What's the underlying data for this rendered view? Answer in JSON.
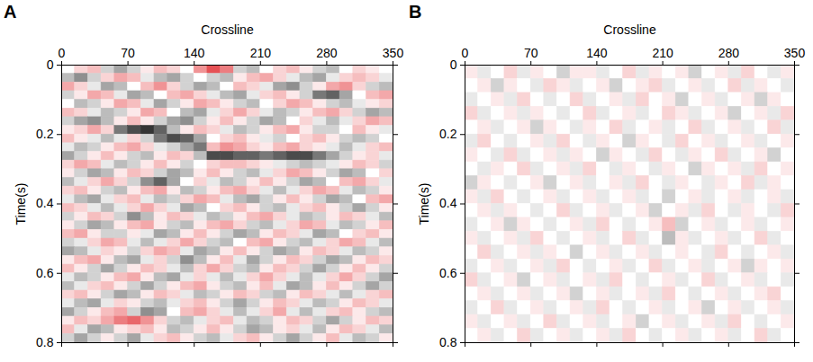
{
  "chart_data": [
    {
      "type": "heatmap",
      "title": "A",
      "xlabel": "Crossline",
      "ylabel": "Time(s)",
      "xlim": [
        0,
        350
      ],
      "xticks": [
        0,
        70,
        140,
        210,
        280,
        350
      ],
      "ylim": [
        0,
        0.8
      ],
      "yticks": [
        0,
        0.2,
        0.4,
        0.6,
        0.8
      ],
      "zlim": [
        -10,
        10
      ],
      "cells": [
        [
          0,
          2,
          3,
          -2,
          -4,
          -2,
          1,
          3,
          2,
          0,
          5,
          8,
          6,
          -2,
          -3,
          0,
          2,
          3,
          1,
          -2,
          -3,
          0,
          2,
          1,
          0
        ],
        [
          -3,
          -5,
          -2,
          2,
          4,
          3,
          -1,
          -3,
          -4,
          -2,
          0,
          -2,
          -3,
          1,
          3,
          4,
          2,
          -1,
          -3,
          -4,
          -1,
          2,
          3,
          2,
          -1
        ],
        [
          4,
          2,
          -1,
          -4,
          -3,
          0,
          3,
          5,
          2,
          -2,
          -4,
          -3,
          0,
          3,
          2,
          -1,
          -4,
          -5,
          -2,
          1,
          4,
          5,
          2,
          -2,
          -3
        ],
        [
          -2,
          1,
          4,
          3,
          -1,
          -4,
          -3,
          0,
          3,
          4,
          2,
          -1,
          -3,
          -4,
          -1,
          2,
          3,
          1,
          -2,
          -6,
          -7,
          -4,
          0,
          3,
          4
        ],
        [
          0,
          -3,
          -2,
          1,
          4,
          3,
          -1,
          -4,
          -2,
          1,
          4,
          3,
          1,
          -2,
          -3,
          0,
          2,
          4,
          3,
          1,
          -2,
          -3,
          -1,
          1,
          2
        ],
        [
          3,
          2,
          -1,
          -3,
          -2,
          1,
          4,
          3,
          0,
          -3,
          -4,
          -1,
          2,
          4,
          2,
          -1,
          -3,
          -2,
          1,
          3,
          4,
          2,
          -2,
          -4,
          -3
        ],
        [
          -2,
          -4,
          -5,
          -3,
          1,
          3,
          1,
          -2,
          -4,
          -5,
          -2,
          1,
          3,
          1,
          -2,
          -4,
          -3,
          0,
          2,
          -1,
          -3,
          -1,
          2,
          4,
          3
        ],
        [
          1,
          2,
          4,
          2,
          -6,
          -8,
          -9,
          -7,
          -3,
          1,
          3,
          2,
          -1,
          -3,
          -2,
          1,
          3,
          4,
          1,
          -2,
          -2,
          0,
          3,
          1,
          -1
        ],
        [
          3,
          1,
          -1,
          -3,
          -1,
          2,
          -2,
          -6,
          -8,
          -7,
          -4,
          0,
          2,
          3,
          1,
          -1,
          -2,
          0,
          2,
          3,
          1,
          -2,
          -3,
          -2,
          0
        ],
        [
          -1,
          -3,
          -2,
          1,
          3,
          4,
          2,
          -1,
          -2,
          -4,
          -6,
          3,
          5,
          4,
          2,
          1,
          3,
          4,
          2,
          1,
          -1,
          -3,
          -1,
          2,
          3
        ],
        [
          -4,
          -2,
          1,
          3,
          1,
          -2,
          -3,
          1,
          3,
          2,
          -3,
          -8,
          -8,
          -7,
          -7,
          -6,
          -7,
          -8,
          -8,
          -6,
          -4,
          -2,
          1,
          2,
          -1
        ],
        [
          2,
          4,
          3,
          -1,
          -3,
          -2,
          1,
          3,
          1,
          -2,
          0,
          2,
          3,
          3,
          2,
          1,
          -1,
          -2,
          -3,
          -2,
          -1,
          1,
          3,
          2,
          -2
        ],
        [
          1,
          -2,
          -4,
          -3,
          1,
          3,
          2,
          -2,
          -4,
          -3,
          1,
          3,
          1,
          -2,
          -3,
          -1,
          2,
          4,
          3,
          1,
          -2,
          -4,
          -3,
          0,
          2
        ],
        [
          -3,
          -1,
          2,
          4,
          2,
          -2,
          -5,
          -7,
          -4,
          0,
          2,
          -1,
          -3,
          -2,
          1,
          3,
          1,
          -2,
          -4,
          -3,
          0,
          3,
          4,
          2,
          -1
        ],
        [
          2,
          3,
          1,
          -2,
          -3,
          1,
          3,
          4,
          1,
          -3,
          -2,
          1,
          3,
          4,
          2,
          -1,
          -3,
          -1,
          2,
          4,
          3,
          -1,
          -3,
          -2,
          1
        ],
        [
          -1,
          -3,
          -4,
          -1,
          2,
          3,
          -1,
          -3,
          -2,
          2,
          4,
          3,
          -1,
          -3,
          -4,
          -2,
          1,
          3,
          1,
          -2,
          -4,
          -3,
          0,
          3,
          4
        ],
        [
          3,
          2,
          -1,
          -3,
          -1,
          2,
          4,
          2,
          -1,
          -4,
          -3,
          0,
          2,
          3,
          1,
          -2,
          -3,
          -1,
          2,
          3,
          1,
          -2,
          -4,
          -2,
          1
        ],
        [
          -2,
          1,
          3,
          2,
          -2,
          -5,
          -3,
          1,
          3,
          2,
          -1,
          -3,
          -2,
          1,
          3,
          4,
          2,
          -1,
          -3,
          -2,
          1,
          3,
          2,
          -1,
          -3
        ],
        [
          1,
          -2,
          -4,
          -3,
          1,
          3,
          4,
          1,
          -2,
          -3,
          1,
          3,
          4,
          2,
          -2,
          -3,
          -1,
          2,
          4,
          3,
          -1,
          -3,
          -2,
          1,
          3
        ],
        [
          3,
          4,
          1,
          -2,
          -2,
          1,
          -1,
          -4,
          -3,
          1,
          3,
          1,
          -2,
          -4,
          -3,
          1,
          3,
          2,
          -1,
          -4,
          -3,
          0,
          2,
          3,
          1
        ],
        [
          -2,
          -1,
          2,
          4,
          3,
          -1,
          -3,
          -1,
          2,
          4,
          2,
          -2,
          -3,
          0,
          3,
          4,
          1,
          -2,
          -3,
          -1,
          2,
          4,
          3,
          -1,
          -3
        ],
        [
          -4,
          -3,
          -1,
          2,
          1,
          -2,
          2,
          4,
          3,
          -1,
          -4,
          -3,
          1,
          3,
          1,
          -2,
          -4,
          -3,
          1,
          3,
          2,
          -1,
          -3,
          -2,
          1
        ],
        [
          1,
          3,
          4,
          1,
          -3,
          -4,
          -1,
          2,
          -2,
          -5,
          -3,
          1,
          3,
          -1,
          -4,
          -2,
          1,
          3,
          2,
          -2,
          -4,
          -3,
          1,
          3,
          2
        ],
        [
          3,
          1,
          -2,
          -4,
          -2,
          1,
          3,
          2,
          -1,
          -3,
          2,
          4,
          2,
          -2,
          -3,
          1,
          3,
          2,
          -2,
          -4,
          -2,
          1,
          3,
          1,
          -2
        ],
        [
          -1,
          -3,
          -2,
          1,
          3,
          4,
          1,
          -3,
          -4,
          -1,
          2,
          -1,
          -3,
          -1,
          2,
          4,
          2,
          -1,
          -3,
          -1,
          2,
          4,
          2,
          -2,
          -4
        ],
        [
          -3,
          -1,
          2,
          3,
          1,
          -2,
          -4,
          -2,
          1,
          3,
          4,
          1,
          -2,
          -3,
          1,
          3,
          -1,
          -4,
          -3,
          1,
          3,
          1,
          -2,
          -4,
          -2
        ],
        [
          2,
          3,
          1,
          -2,
          -4,
          -3,
          1,
          3,
          2,
          -1,
          -3,
          -2,
          1,
          3,
          2,
          -2,
          -3,
          1,
          3,
          2,
          -1,
          -3,
          -1,
          2,
          3
        ],
        [
          -1,
          -3,
          -4,
          -1,
          2,
          1,
          -2,
          -3,
          -1,
          2,
          3,
          1,
          -2,
          -4,
          -2,
          1,
          3,
          2,
          -1,
          -3,
          -2,
          1,
          3,
          2,
          -1
        ],
        [
          -4,
          -2,
          1,
          3,
          4,
          -2,
          -5,
          -4,
          0,
          3,
          4,
          2,
          -1,
          -3,
          -1,
          2,
          4,
          -1,
          -3,
          -1,
          2,
          3,
          1,
          -2,
          -3
        ],
        [
          1,
          3,
          2,
          4,
          6,
          7,
          5,
          2,
          -2,
          -3,
          -1,
          2,
          3,
          -1,
          -3,
          -2,
          1,
          3,
          2,
          -2,
          -4,
          -2,
          1,
          3,
          2
        ],
        [
          3,
          -1,
          -4,
          -3,
          1,
          2,
          3,
          1,
          -3,
          -2,
          1,
          3,
          1,
          -2,
          -4,
          -3,
          1,
          2,
          -1,
          -3,
          1,
          3,
          2,
          -1,
          -3
        ],
        [
          -2,
          -4,
          -2,
          1,
          -2,
          -4,
          -1,
          2,
          3,
          1,
          -2,
          -3,
          -1,
          2,
          3,
          1,
          -2,
          -4,
          -2,
          1,
          3,
          -1,
          -3,
          -2,
          1
        ]
      ]
    },
    {
      "type": "heatmap",
      "title": "B",
      "xlabel": "Crossline",
      "ylabel": "Time(s)",
      "xlim": [
        0,
        350
      ],
      "xticks": [
        0,
        70,
        140,
        210,
        280,
        350
      ],
      "ylim": [
        0,
        0.8
      ],
      "yticks": [
        0,
        0.2,
        0.4,
        0.6,
        0.8
      ],
      "zlim": [
        -10,
        10
      ],
      "cells": [
        [
          1,
          -1,
          0,
          2,
          -1,
          1,
          0,
          -2,
          1,
          1,
          -1,
          0,
          2,
          -1,
          1,
          0,
          1,
          -2,
          0,
          1,
          -1,
          2,
          0,
          -1,
          1
        ],
        [
          0,
          1,
          -2,
          1,
          0,
          -1,
          2,
          1,
          -1,
          0,
          1,
          -2,
          0,
          1,
          2,
          -1,
          0,
          1,
          -1,
          0,
          2,
          -1,
          1,
          0,
          -1
        ],
        [
          -1,
          0,
          1,
          -1,
          2,
          0,
          -1,
          0,
          2,
          -1,
          0,
          1,
          -1,
          2,
          0,
          1,
          -2,
          0,
          1,
          -1,
          0,
          1,
          -2,
          1,
          0
        ],
        [
          2,
          -1,
          0,
          1,
          -1,
          1,
          0,
          -1,
          0,
          2,
          -1,
          0,
          1,
          -1,
          0,
          2,
          1,
          -1,
          0,
          1,
          -2,
          0,
          1,
          -1,
          2
        ],
        [
          0,
          1,
          -1,
          0,
          1,
          -2,
          1,
          0,
          -1,
          1,
          0,
          2,
          -1,
          0,
          1,
          -1,
          0,
          2,
          -1,
          0,
          1,
          -1,
          0,
          2,
          -1
        ],
        [
          -1,
          2,
          0,
          -1,
          0,
          1,
          -1,
          2,
          0,
          -1,
          1,
          0,
          -2,
          1,
          0,
          -1,
          2,
          0,
          1,
          -1,
          0,
          1,
          -1,
          0,
          1
        ],
        [
          1,
          0,
          -1,
          2,
          -1,
          0,
          1,
          -1,
          1,
          0,
          -2,
          1,
          0,
          -1,
          2,
          0,
          -1,
          1,
          0,
          2,
          -1,
          0,
          1,
          -2,
          0
        ],
        [
          0,
          -1,
          1,
          0,
          2,
          -1,
          0,
          1,
          -1,
          2,
          0,
          -1,
          1,
          0,
          -1,
          1,
          0,
          -2,
          1,
          0,
          1,
          -1,
          2,
          0,
          1
        ],
        [
          -2,
          1,
          0,
          -1,
          0,
          1,
          -2,
          0,
          1,
          -1,
          0,
          1,
          -1,
          2,
          0,
          -1,
          1,
          0,
          -1,
          1,
          0,
          2,
          -1,
          1,
          0
        ],
        [
          1,
          -1,
          2,
          0,
          -1,
          0,
          1,
          -1,
          0,
          1,
          -1,
          0,
          1,
          -1,
          0,
          -2,
          0,
          1,
          -1,
          0,
          1,
          -1,
          0,
          1,
          -1
        ],
        [
          0,
          1,
          -1,
          1,
          0,
          -1,
          0,
          2,
          -1,
          0,
          1,
          -1,
          0,
          1,
          -2,
          0,
          1,
          -1,
          2,
          0,
          -1,
          1,
          0,
          -1,
          2
        ],
        [
          -1,
          0,
          1,
          -2,
          1,
          0,
          -1,
          0,
          1,
          -1,
          2,
          0,
          -1,
          0,
          1,
          3,
          -2,
          0,
          1,
          -1,
          0,
          1,
          -1,
          0,
          1
        ],
        [
          1,
          -1,
          0,
          1,
          -1,
          2,
          0,
          -1,
          0,
          1,
          -1,
          0,
          2,
          -1,
          0,
          -3,
          1,
          -1,
          0,
          1,
          -1,
          0,
          2,
          -1,
          0
        ],
        [
          0,
          2,
          -1,
          0,
          1,
          -1,
          1,
          0,
          -2,
          0,
          1,
          -1,
          0,
          1,
          -1,
          0,
          1,
          0,
          -1,
          2,
          0,
          -1,
          0,
          1,
          -1
        ],
        [
          -1,
          0,
          1,
          -1,
          0,
          1,
          -1,
          2,
          0,
          -1,
          0,
          1,
          -1,
          0,
          2,
          -1,
          0,
          1,
          -1,
          0,
          1,
          -2,
          1,
          0,
          1
        ],
        [
          2,
          -1,
          0,
          1,
          -2,
          0,
          1,
          -1,
          0,
          1,
          -1,
          2,
          0,
          -1,
          0,
          1,
          -1,
          0,
          2,
          -1,
          0,
          1,
          -1,
          0,
          -1
        ],
        [
          0,
          1,
          -1,
          0,
          1,
          -1,
          0,
          1,
          -2,
          0,
          1,
          -1,
          0,
          1,
          -1,
          2,
          0,
          -1,
          0,
          1,
          -1,
          0,
          1,
          2,
          0
        ],
        [
          -1,
          0,
          2,
          -1,
          0,
          1,
          -1,
          0,
          1,
          -1,
          2,
          0,
          -1,
          0,
          1,
          -1,
          0,
          1,
          -2,
          0,
          1,
          -1,
          0,
          1,
          -1
        ],
        [
          1,
          -1,
          0,
          1,
          -1,
          0,
          2,
          -1,
          0,
          1,
          -1,
          0,
          1,
          -2,
          0,
          1,
          -1,
          0,
          1,
          -1,
          2,
          0,
          -1,
          0,
          1
        ],
        [
          0,
          1,
          -1,
          0,
          2,
          -1,
          0,
          1,
          -1,
          0,
          1,
          -1,
          2,
          0,
          -1,
          0,
          1,
          -1,
          0,
          1,
          -1,
          0,
          2,
          -1,
          0
        ]
      ]
    }
  ]
}
